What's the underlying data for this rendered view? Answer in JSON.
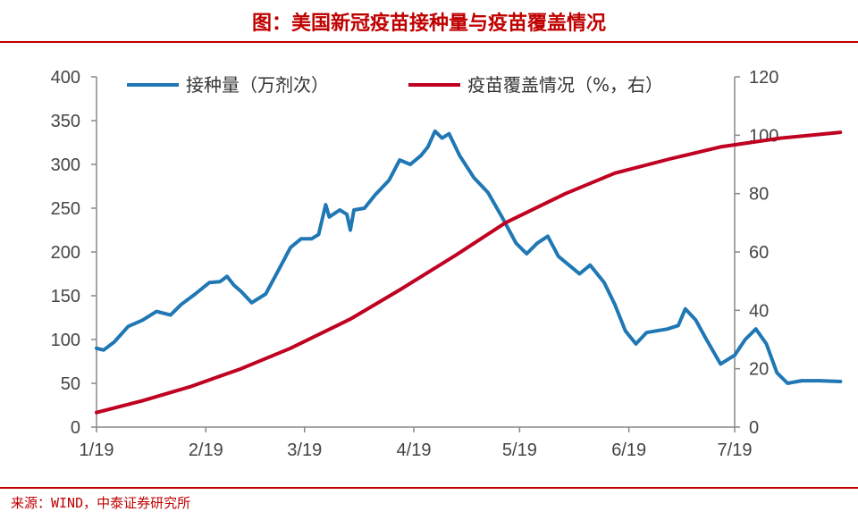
{
  "title": "图：美国新冠疫苗接种量与疫苗覆盖情况",
  "source": "来源：WIND，中泰证券研究所",
  "colors": {
    "accent": "#c00000",
    "series1": "#1f77b4",
    "series2": "#c00020"
  },
  "chart_data": {
    "type": "line",
    "x_ticks": [
      "1/19",
      "2/19",
      "3/19",
      "4/19",
      "5/19",
      "6/19",
      "7/19"
    ],
    "y_left": {
      "range": [
        0,
        400
      ],
      "ticks": [
        "0",
        "50",
        "100",
        "150",
        "200",
        "250",
        "300",
        "350",
        "400"
      ]
    },
    "y_right": {
      "range": [
        0,
        120
      ],
      "ticks": [
        "0",
        "20",
        "40",
        "60",
        "80",
        "100",
        "120"
      ]
    },
    "legend_position": "top",
    "grid": false,
    "series": [
      {
        "name": "接种量（万剂次）",
        "axis": "left",
        "color": "#1f77b4",
        "points": [
          [
            "2021-01-19",
            90
          ],
          [
            "2021-01-21",
            88
          ],
          [
            "2021-01-24",
            97
          ],
          [
            "2021-01-28",
            115
          ],
          [
            "2021-02-01",
            122
          ],
          [
            "2021-02-05",
            132
          ],
          [
            "2021-02-09",
            128
          ],
          [
            "2021-02-12",
            140
          ],
          [
            "2021-02-16",
            152
          ],
          [
            "2021-02-20",
            165
          ],
          [
            "2021-02-23",
            166
          ],
          [
            "2021-02-25",
            172
          ],
          [
            "2021-02-27",
            162
          ],
          [
            "2021-03-01",
            155
          ],
          [
            "2021-03-04",
            142
          ],
          [
            "2021-03-08",
            152
          ],
          [
            "2021-03-12",
            182
          ],
          [
            "2021-03-15",
            205
          ],
          [
            "2021-03-18",
            215
          ],
          [
            "2021-03-21",
            215
          ],
          [
            "2021-03-23",
            220
          ],
          [
            "2021-03-25",
            254
          ],
          [
            "2021-03-26",
            240
          ],
          [
            "2021-03-29",
            248
          ],
          [
            "2021-03-31",
            243
          ],
          [
            "2021-04-01",
            225
          ],
          [
            "2021-04-02",
            248
          ],
          [
            "2021-04-05",
            250
          ],
          [
            "2021-04-08",
            265
          ],
          [
            "2021-04-12",
            282
          ],
          [
            "2021-04-15",
            305
          ],
          [
            "2021-04-18",
            300
          ],
          [
            "2021-04-21",
            310
          ],
          [
            "2021-04-23",
            320
          ],
          [
            "2021-04-25",
            338
          ],
          [
            "2021-04-27",
            330
          ],
          [
            "2021-04-29",
            335
          ],
          [
            "2021-05-02",
            310
          ],
          [
            "2021-05-06",
            285
          ],
          [
            "2021-05-10",
            268
          ],
          [
            "2021-05-14",
            240
          ],
          [
            "2021-05-18",
            210
          ],
          [
            "2021-05-21",
            198
          ],
          [
            "2021-05-24",
            210
          ],
          [
            "2021-05-27",
            218
          ],
          [
            "2021-05-30",
            195
          ],
          [
            "2021-06-02",
            185
          ],
          [
            "2021-06-05",
            175
          ],
          [
            "2021-06-08",
            185
          ],
          [
            "2021-06-12",
            165
          ],
          [
            "2021-06-15",
            140
          ],
          [
            "2021-06-18",
            110
          ],
          [
            "2021-06-21",
            95
          ],
          [
            "2021-06-24",
            108
          ],
          [
            "2021-06-27",
            110
          ],
          [
            "2021-06-30",
            112
          ],
          [
            "2021-07-03",
            116
          ],
          [
            "2021-07-05",
            135
          ],
          [
            "2021-07-08",
            122
          ],
          [
            "2021-07-11",
            100
          ],
          [
            "2021-07-15",
            72
          ],
          [
            "2021-07-19",
            82
          ],
          [
            "2021-07-22",
            100
          ],
          [
            "2021-07-25",
            112
          ],
          [
            "2021-07-28",
            95
          ],
          [
            "2021-07-31",
            62
          ],
          [
            "2021-08-03",
            50
          ],
          [
            "2021-08-07",
            53
          ],
          [
            "2021-08-12",
            53
          ],
          [
            "2021-08-18",
            52
          ]
        ]
      },
      {
        "name": "疫苗覆盖情况（%，右）",
        "axis": "right",
        "color": "#c00020",
        "points": [
          [
            "2021-01-19",
            5
          ],
          [
            "2021-02-01",
            9
          ],
          [
            "2021-02-15",
            14
          ],
          [
            "2021-03-01",
            20
          ],
          [
            "2021-03-15",
            27
          ],
          [
            "2021-04-01",
            37
          ],
          [
            "2021-04-15",
            47
          ],
          [
            "2021-05-01",
            59
          ],
          [
            "2021-05-15",
            70
          ],
          [
            "2021-06-01",
            80
          ],
          [
            "2021-06-15",
            87
          ],
          [
            "2021-07-01",
            92
          ],
          [
            "2021-07-15",
            96
          ],
          [
            "2021-08-01",
            99
          ],
          [
            "2021-08-18",
            101
          ]
        ]
      }
    ]
  }
}
